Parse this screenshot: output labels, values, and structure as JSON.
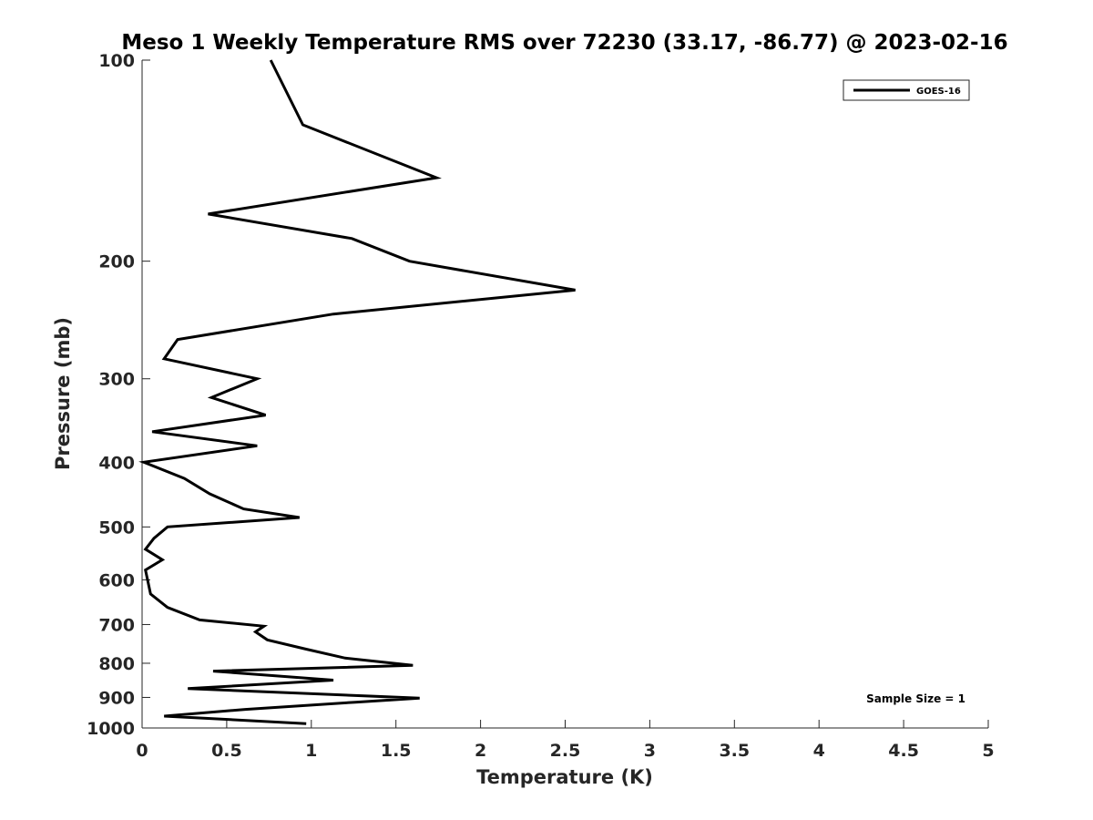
{
  "chart_data": {
    "type": "line",
    "title": "Meso 1 Weekly Temperature RMS over 72230 (33.17, -86.77) @ 2023-02-16",
    "xlabel": "Temperature (K)",
    "ylabel": "Pressure (mb)",
    "xlim": [
      0,
      5
    ],
    "ylim": [
      100,
      1000
    ],
    "y_scale": "log",
    "y_reversed": true,
    "x_ticks": [
      0,
      0.5,
      1,
      1.5,
      2,
      2.5,
      3,
      3.5,
      4,
      4.5,
      5
    ],
    "x_tick_labels": [
      "0",
      "0.5",
      "1",
      "1.5",
      "2",
      "2.5",
      "3",
      "3.5",
      "4",
      "4.5",
      "5"
    ],
    "y_ticks": [
      100,
      200,
      300,
      400,
      500,
      600,
      700,
      800,
      900,
      1000
    ],
    "y_tick_labels": [
      "100",
      "200",
      "300",
      "400",
      "500",
      "600",
      "700",
      "800",
      "900",
      "1000"
    ],
    "grid": false,
    "legend_position": "top-right",
    "annotation": "Sample Size = 1",
    "series": [
      {
        "name": "GOES-16",
        "color": "#000000",
        "points": [
          [
            0.76,
            100
          ],
          [
            0.95,
            125
          ],
          [
            1.74,
            150
          ],
          [
            0.39,
            170
          ],
          [
            1.24,
            185
          ],
          [
            1.58,
            200
          ],
          [
            2.56,
            221
          ],
          [
            1.13,
            240
          ],
          [
            0.21,
            262
          ],
          [
            0.13,
            280
          ],
          [
            0.68,
            300
          ],
          [
            0.41,
            320
          ],
          [
            0.73,
            340
          ],
          [
            0.06,
            360
          ],
          [
            0.68,
            378
          ],
          [
            0.01,
            400
          ],
          [
            0.25,
            423
          ],
          [
            0.4,
            446
          ],
          [
            0.6,
            470
          ],
          [
            0.93,
            484
          ],
          [
            0.15,
            500
          ],
          [
            0.07,
            520
          ],
          [
            0.02,
            540
          ],
          [
            0.12,
            560
          ],
          [
            0.02,
            580
          ],
          [
            0.05,
            630
          ],
          [
            0.15,
            660
          ],
          [
            0.34,
            689
          ],
          [
            0.72,
            704
          ],
          [
            0.67,
            718
          ],
          [
            0.74,
            738
          ],
          [
            0.97,
            762
          ],
          [
            1.2,
            786
          ],
          [
            1.6,
            806
          ],
          [
            0.42,
            822
          ],
          [
            1.13,
            848
          ],
          [
            0.27,
            873
          ],
          [
            1.64,
            902
          ],
          [
            1.26,
            915
          ],
          [
            0.61,
            938
          ],
          [
            0.13,
            960
          ],
          [
            0.97,
            985
          ]
        ]
      }
    ]
  }
}
